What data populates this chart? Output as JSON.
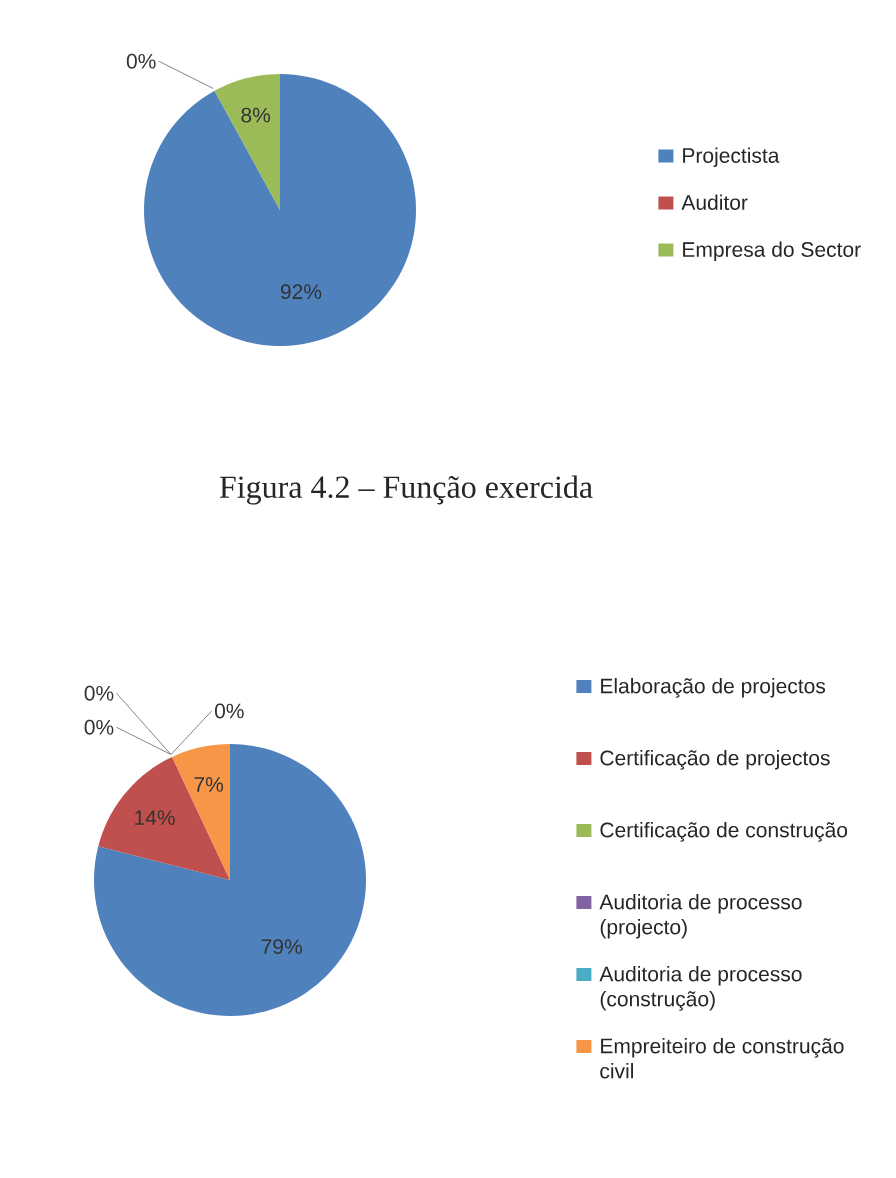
{
  "chart_data": [
    {
      "type": "pie",
      "categories": [
        "Projectista",
        "Auditor",
        "Empresa do Sector"
      ],
      "values": [
        92,
        0,
        8
      ],
      "colors": [
        "#4f81bd",
        "#c0504d",
        "#9bbb59"
      ],
      "value_labels": [
        "92%",
        "0%",
        "8%"
      ],
      "legend": "right",
      "annotations": [
        "Figura 4.2 – Função exercida"
      ]
    },
    {
      "type": "pie",
      "categories": [
        "Elaboração de projectos",
        "Certificação de projectos",
        "Certificação de construção",
        "Auditoria de processo (projecto)",
        "Auditoria de processo (construção)",
        "Empreiteiro de construção civil"
      ],
      "values": [
        79,
        14,
        0,
        0,
        0,
        7
      ],
      "colors": [
        "#4f81bd",
        "#c0504d",
        "#9bbb59",
        "#8064a2",
        "#4bacc6",
        "#f79646"
      ],
      "value_labels": [
        "79%",
        "14%",
        "0%",
        "0%",
        "0%",
        "7%"
      ],
      "legend": "right"
    }
  ]
}
